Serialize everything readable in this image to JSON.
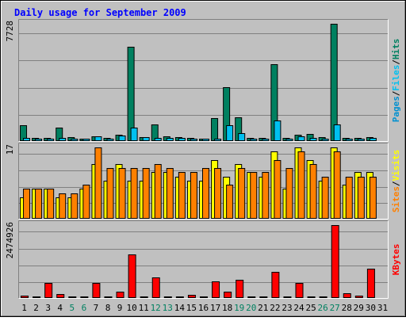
{
  "chart_data": [
    {
      "type": "bar",
      "title": "Daily usage for September 2009",
      "days": [
        "1",
        "2",
        "3",
        "4",
        "5",
        "6",
        "7",
        "8",
        "9",
        "10",
        "11",
        "12",
        "13",
        "14",
        "15",
        "16",
        "17",
        "18",
        "19",
        "20",
        "21",
        "22",
        "23",
        "24",
        "25",
        "26",
        "27",
        "28",
        "29",
        "30",
        "31"
      ],
      "weekend_days": [
        "5",
        "6",
        "12",
        "13",
        "19",
        "20",
        "26",
        "27"
      ],
      "y_axis_label": "7728",
      "ylim": [
        0,
        7728
      ],
      "legend": [
        "Pages",
        "Files",
        "Hits"
      ],
      "colors": {
        "Pages": "#0090d0",
        "Files": "#00c0f0",
        "Hits": "#008060"
      },
      "series": [
        {
          "name": "Hits",
          "values": [
            990,
            160,
            160,
            840,
            190,
            110,
            260,
            170,
            380,
            6220,
            230,
            1030,
            240,
            190,
            150,
            130,
            1480,
            3530,
            1540,
            150,
            170,
            5070,
            150,
            360,
            420,
            190,
            7728,
            150,
            180,
            220,
            0
          ]
        },
        {
          "name": "Files",
          "values": [
            150,
            110,
            100,
            160,
            100,
            80,
            240,
            130,
            320,
            860,
            190,
            150,
            180,
            140,
            110,
            110,
            90,
            990,
            460,
            130,
            130,
            1320,
            110,
            280,
            150,
            90,
            1040,
            100,
            100,
            140,
            0
          ]
        }
      ]
    },
    {
      "type": "bar",
      "y_axis_label": "17",
      "ylim": [
        0,
        17
      ],
      "legend": [
        "Sites",
        "Visits"
      ],
      "colors": {
        "Sites": "#ff8000",
        "Visits": "#ffff00"
      },
      "series": [
        {
          "name": "Visits",
          "values": [
            5,
            7,
            7,
            5,
            5,
            7,
            13,
            9,
            13,
            9,
            9,
            11,
            11,
            10,
            9,
            9,
            14,
            10,
            13,
            11,
            10,
            16,
            7,
            17,
            14,
            9,
            17,
            8,
            11,
            11,
            0
          ]
        },
        {
          "name": "Sites",
          "values": [
            7,
            7,
            7,
            6,
            6,
            8,
            17,
            12,
            12,
            12,
            12,
            13,
            12,
            11,
            11,
            12,
            12,
            8,
            12,
            11,
            11,
            14,
            12,
            16,
            13,
            10,
            16,
            10,
            10,
            10,
            0
          ]
        }
      ]
    },
    {
      "type": "bar",
      "y_axis_label": "2474926",
      "ylim": [
        0,
        2474926
      ],
      "legend": [
        "KBytes"
      ],
      "colors": {
        "KBytes": "#ff0000"
      },
      "series": [
        {
          "name": "KBytes",
          "values": [
            50000,
            20000,
            480000,
            120000,
            20000,
            10000,
            490000,
            30000,
            180000,
            1480000,
            20000,
            680000,
            20000,
            20000,
            70000,
            40000,
            550000,
            190000,
            600000,
            10000,
            10000,
            860000,
            20000,
            500000,
            10000,
            10000,
            2474926,
            140000,
            60000,
            980000,
            0
          ]
        }
      ]
    }
  ],
  "colors": {
    "background": "#c0c0c0",
    "title": "#0000ff",
    "grid": "#808080",
    "border": "#000000"
  }
}
